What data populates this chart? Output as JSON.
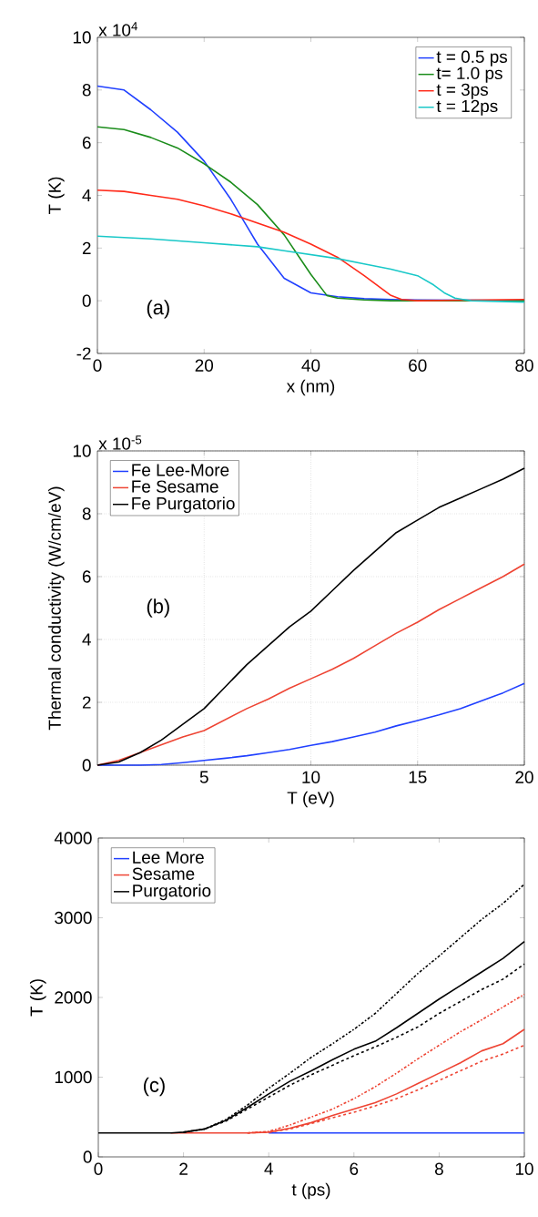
{
  "chart_data": [
    {
      "type": "line",
      "xlabel": "x (nm)",
      "ylabel": "T (K)",
      "xlim": [
        0,
        80
      ],
      "ylim": [
        -2,
        10
      ],
      "xticks": [
        0,
        20,
        40,
        60,
        80
      ],
      "yticks": [
        -2,
        0,
        2,
        4,
        6,
        8,
        10
      ],
      "legend": "top right",
      "annotations": [
        "x 10$^{4}$",
        "(a)"
      ],
      "series": [
        {
          "name": "t = 0.5 ps",
          "color": "#2040ff",
          "x": [
            0,
            5,
            10,
            15,
            20,
            25,
            30,
            35,
            40,
            45,
            50,
            55,
            60,
            70,
            80
          ],
          "values": [
            8.15,
            8.0,
            7.25,
            6.4,
            5.3,
            3.85,
            2.15,
            0.85,
            0.3,
            0.15,
            0.08,
            0.05,
            0.03,
            0.02,
            0
          ]
        },
        {
          "name": "t= 1.0 ps",
          "color": "#1a8c1a",
          "x": [
            0,
            5,
            10,
            15,
            20,
            25,
            30,
            35,
            40,
            43,
            45,
            50,
            55,
            80
          ],
          "values": [
            6.6,
            6.5,
            6.2,
            5.8,
            5.2,
            4.5,
            3.65,
            2.5,
            1.0,
            0.2,
            0.1,
            0.03,
            0,
            0
          ]
        },
        {
          "name": "t = 3ps",
          "color": "#ff2a1a",
          "x": [
            0,
            5,
            10,
            15,
            20,
            25,
            30,
            35,
            40,
            45,
            50,
            55,
            57,
            60,
            80
          ],
          "values": [
            4.2,
            4.15,
            4.0,
            3.85,
            3.6,
            3.3,
            2.95,
            2.6,
            2.15,
            1.65,
            0.95,
            0.2,
            0.05,
            0,
            0.05
          ]
        },
        {
          "name": "t = 12ps",
          "color": "#19c8c8",
          "x": [
            0,
            10,
            20,
            30,
            35,
            40,
            45,
            50,
            55,
            60,
            63,
            65,
            67,
            70,
            80
          ],
          "values": [
            2.45,
            2.35,
            2.2,
            2.05,
            1.9,
            1.75,
            1.6,
            1.4,
            1.2,
            0.95,
            0.6,
            0.3,
            0.1,
            0,
            -0.05
          ]
        }
      ]
    },
    {
      "type": "line",
      "xlabel": "T (eV)",
      "ylabel": "Thermal conductivity (W/cm/eV)",
      "xlim": [
        0,
        20
      ],
      "ylim": [
        0,
        10
      ],
      "xticks": [
        5,
        10,
        15,
        20
      ],
      "yticks": [
        0,
        2,
        4,
        6,
        8,
        10
      ],
      "grid": true,
      "legend": "top left",
      "annotations": [
        "x 10$^{-5}$",
        "(b)"
      ],
      "series": [
        {
          "name": "Fe Lee-More",
          "color": "#2040ff",
          "x": [
            0,
            2,
            3,
            4,
            5,
            6,
            7,
            8,
            9,
            10,
            11,
            12,
            13,
            14,
            15,
            16,
            17,
            18,
            19,
            20
          ],
          "values": [
            0,
            0,
            0.02,
            0.08,
            0.15,
            0.22,
            0.3,
            0.4,
            0.5,
            0.63,
            0.75,
            0.9,
            1.05,
            1.25,
            1.42,
            1.6,
            1.8,
            2.05,
            2.3,
            2.6
          ]
        },
        {
          "name": "Fe Sesame",
          "color": "#ee4433",
          "x": [
            0,
            1,
            2,
            3,
            4,
            5,
            6,
            7,
            8,
            9,
            10,
            11,
            12,
            13,
            14,
            15,
            16,
            17,
            18,
            19,
            20
          ],
          "values": [
            0,
            0.15,
            0.4,
            0.65,
            0.9,
            1.1,
            1.45,
            1.8,
            2.1,
            2.45,
            2.75,
            3.05,
            3.4,
            3.8,
            4.2,
            4.55,
            4.95,
            5.3,
            5.65,
            6.0,
            6.4
          ]
        },
        {
          "name": "Fe Purgatorio",
          "color": "#000000",
          "x": [
            0,
            1,
            2,
            3,
            4,
            5,
            6,
            7,
            8,
            9,
            10,
            11,
            12,
            13,
            14,
            15,
            16,
            17,
            18,
            19,
            20
          ],
          "values": [
            0,
            0.1,
            0.4,
            0.8,
            1.3,
            1.8,
            2.5,
            3.2,
            3.8,
            4.4,
            4.9,
            5.55,
            6.2,
            6.8,
            7.4,
            7.8,
            8.2,
            8.5,
            8.8,
            9.1,
            9.45
          ]
        }
      ]
    },
    {
      "type": "line",
      "xlabel": "t (ps)",
      "ylabel": "T (K)",
      "xlim": [
        0,
        10
      ],
      "ylim": [
        0,
        4000
      ],
      "xticks": [
        0,
        2,
        4,
        6,
        8,
        10
      ],
      "yticks": [
        0,
        1000,
        2000,
        3000,
        4000
      ],
      "legend": "top left",
      "annotations": [
        "(c)"
      ],
      "series": [
        {
          "name": "Lee More",
          "color": "#2040ff",
          "line_style": "solid",
          "x": [
            4,
            10
          ],
          "values": [
            300,
            300
          ]
        },
        {
          "name": "Sesame",
          "color": "#ee4433",
          "line_style": "solid",
          "x": [
            1.7,
            3.5,
            4,
            4.5,
            5,
            5.5,
            6,
            6.5,
            7,
            7.5,
            8,
            8.5,
            9,
            9.5,
            10
          ],
          "values": [
            300,
            300,
            310,
            360,
            430,
            520,
            600,
            680,
            790,
            920,
            1050,
            1180,
            1330,
            1420,
            1600
          ]
        },
        {
          "name": "Purgatorio",
          "color": "#000000",
          "line_style": "solid",
          "x": [
            0,
            1.7,
            2,
            2.5,
            3,
            3.5,
            4,
            4.5,
            5,
            5.5,
            6,
            6.5,
            7,
            7.5,
            8,
            8.5,
            9,
            9.5,
            10
          ],
          "values": [
            300,
            300,
            310,
            350,
            460,
            620,
            790,
            950,
            1080,
            1220,
            1350,
            1450,
            1620,
            1800,
            1980,
            2150,
            2320,
            2490,
            2700
          ]
        },
        {
          "color": "#ee4433",
          "line_style": "dashdot",
          "x": [
            3.5,
            4,
            4.5,
            5,
            5.5,
            6,
            6.5,
            7,
            7.5,
            8,
            8.5,
            9,
            9.5,
            10
          ],
          "values": [
            300,
            320,
            400,
            500,
            600,
            730,
            880,
            1050,
            1230,
            1400,
            1570,
            1720,
            1880,
            2040
          ]
        },
        {
          "color": "#ee4433",
          "line_style": "dashed",
          "x": [
            3.5,
            4,
            4.5,
            5,
            5.5,
            6,
            6.5,
            7,
            7.5,
            8,
            8.5,
            9,
            9.5,
            10
          ],
          "values": [
            300,
            310,
            350,
            420,
            490,
            560,
            640,
            730,
            840,
            960,
            1080,
            1200,
            1290,
            1400
          ]
        },
        {
          "color": "#000000",
          "line_style": "dashdot",
          "x": [
            2,
            2.5,
            3,
            3.5,
            4,
            4.5,
            5,
            5.5,
            6,
            6.5,
            7,
            7.5,
            8,
            8.5,
            9,
            9.5,
            10
          ],
          "values": [
            310,
            350,
            470,
            650,
            860,
            1050,
            1250,
            1420,
            1600,
            1800,
            2050,
            2300,
            2520,
            2750,
            2980,
            3180,
            3420
          ]
        },
        {
          "color": "#000000",
          "line_style": "dashed",
          "x": [
            2,
            2.5,
            3,
            3.5,
            4,
            4.5,
            5,
            5.5,
            6,
            6.5,
            7,
            7.5,
            8,
            8.5,
            9,
            9.5,
            10
          ],
          "values": [
            310,
            350,
            450,
            600,
            750,
            900,
            1030,
            1150,
            1270,
            1380,
            1500,
            1630,
            1800,
            1950,
            2100,
            2230,
            2420
          ]
        }
      ]
    }
  ]
}
